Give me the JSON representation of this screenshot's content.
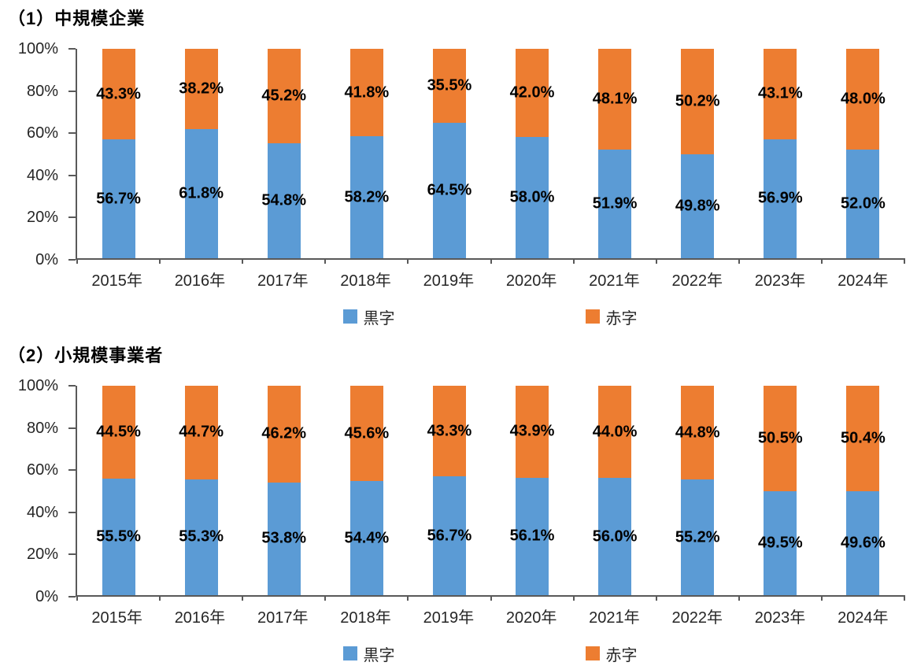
{
  "colors": {
    "surplus_blue": "#5B9BD5",
    "deficit_orange": "#ED7D31",
    "axis": "#595959",
    "axis_text": "#262626",
    "data_label": "#000000"
  },
  "chart_data": [
    {
      "type": "bar",
      "stacked": true,
      "unit": "%",
      "title": "（1）中規模企業",
      "categories": [
        "2015年",
        "2016年",
        "2017年",
        "2018年",
        "2019年",
        "2020年",
        "2021年",
        "2022年",
        "2023年",
        "2024年"
      ],
      "series": [
        {
          "name": "黒字",
          "color": "#5B9BD5",
          "values": [
            56.7,
            61.8,
            54.8,
            58.2,
            64.5,
            58.0,
            51.9,
            49.8,
            56.9,
            52.0
          ]
        },
        {
          "name": "赤字",
          "color": "#ED7D31",
          "values": [
            43.3,
            38.2,
            45.2,
            41.8,
            35.5,
            42.0,
            48.1,
            50.2,
            43.1,
            48.0
          ]
        }
      ],
      "y_axis": {
        "ticks": [
          "100%",
          "80%",
          "60%",
          "40%",
          "20%",
          "0%"
        ],
        "min": 0,
        "max": 100
      },
      "legend_position": "bottom",
      "grid": false
    },
    {
      "type": "bar",
      "stacked": true,
      "unit": "%",
      "title": "（2）小規模事業者",
      "categories": [
        "2015年",
        "2016年",
        "2017年",
        "2018年",
        "2019年",
        "2020年",
        "2021年",
        "2022年",
        "2023年",
        "2024年"
      ],
      "series": [
        {
          "name": "黒字",
          "color": "#5B9BD5",
          "values": [
            55.5,
            55.3,
            53.8,
            54.4,
            56.7,
            56.1,
            56.0,
            55.2,
            49.5,
            49.6
          ]
        },
        {
          "name": "赤字",
          "color": "#ED7D31",
          "values": [
            44.5,
            44.7,
            46.2,
            45.6,
            43.3,
            43.9,
            44.0,
            44.8,
            50.5,
            50.4
          ]
        }
      ],
      "y_axis": {
        "ticks": [
          "100%",
          "80%",
          "60%",
          "40%",
          "20%",
          "0%"
        ],
        "min": 0,
        "max": 100
      },
      "legend_position": "bottom",
      "grid": false
    }
  ]
}
